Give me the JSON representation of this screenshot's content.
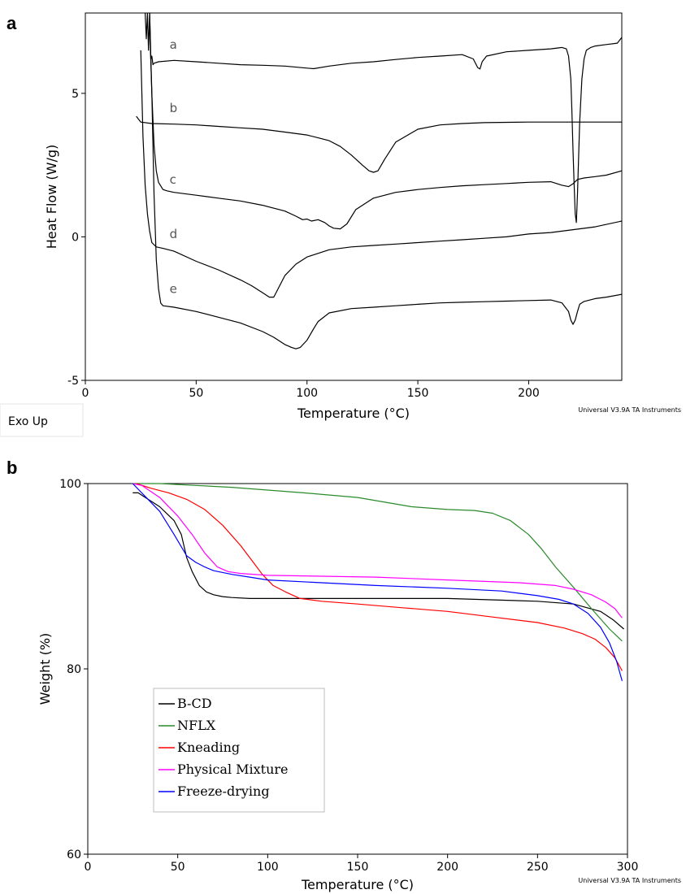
{
  "chart_data": [
    {
      "panel": "a",
      "type": "line",
      "xlabel": "Temperature (°C)",
      "ylabel": "Heat Flow (W/g)",
      "xlim": [
        0,
        242
      ],
      "ylim": [
        -5,
        7.8
      ],
      "xticks": [
        0,
        50,
        100,
        150,
        200
      ],
      "yticks": [
        -5,
        0,
        5
      ],
      "note": "Exo Up",
      "credit": "Universal V3.9A TA Instruments",
      "grid": false,
      "series": [
        {
          "name": "a",
          "color": "#000000",
          "x": [
            27,
            27.5,
            28,
            28.5,
            29,
            29.5,
            30,
            30.5,
            31,
            33,
            40,
            50,
            60,
            70,
            80,
            90,
            100,
            103,
            110,
            120,
            130,
            140,
            150,
            160,
            170,
            175,
            177,
            178,
            179,
            181,
            190,
            200,
            210,
            215,
            217,
            218,
            219,
            219.5,
            220,
            220.5,
            221,
            221.5,
            222,
            223,
            224,
            225,
            226,
            228,
            230,
            235,
            240,
            242
          ],
          "y": [
            7.8,
            6.9,
            7.8,
            6.5,
            7.8,
            6.2,
            6.3,
            6.0,
            6.05,
            6.1,
            6.15,
            6.1,
            6.05,
            6.0,
            5.98,
            5.95,
            5.88,
            5.86,
            5.95,
            6.05,
            6.1,
            6.18,
            6.25,
            6.3,
            6.35,
            6.2,
            5.9,
            5.85,
            6.1,
            6.3,
            6.45,
            6.5,
            6.55,
            6.6,
            6.55,
            6.3,
            5.5,
            4.4,
            3.0,
            1.8,
            0.8,
            0.5,
            1.5,
            4.0,
            5.5,
            6.2,
            6.5,
            6.6,
            6.65,
            6.7,
            6.75,
            6.95
          ]
        },
        {
          "name": "b",
          "color": "#000000",
          "x": [
            23,
            25,
            30,
            40,
            50,
            60,
            70,
            80,
            90,
            100,
            105,
            110,
            115,
            120,
            125,
            128,
            130,
            132,
            135,
            140,
            150,
            160,
            170,
            180,
            200,
            220,
            242
          ],
          "y": [
            4.2,
            4.0,
            3.95,
            3.93,
            3.9,
            3.85,
            3.8,
            3.75,
            3.65,
            3.55,
            3.45,
            3.35,
            3.15,
            2.85,
            2.5,
            2.3,
            2.25,
            2.3,
            2.7,
            3.3,
            3.75,
            3.9,
            3.95,
            3.98,
            4.0,
            4.0,
            4.0
          ]
        },
        {
          "name": "c",
          "color": "#000000",
          "x": [
            29,
            30,
            31,
            32,
            33,
            35,
            37,
            40,
            50,
            60,
            70,
            80,
            90,
            95,
            98,
            100,
            102,
            105,
            108,
            110,
            112,
            115,
            118,
            122,
            130,
            140,
            150,
            160,
            170,
            180,
            190,
            200,
            210,
            215,
            218,
            220,
            222,
            225,
            230,
            235,
            242
          ],
          "y": [
            7.5,
            5.0,
            3.2,
            2.3,
            1.9,
            1.65,
            1.6,
            1.55,
            1.45,
            1.35,
            1.25,
            1.1,
            0.9,
            0.72,
            0.6,
            0.62,
            0.55,
            0.6,
            0.5,
            0.38,
            0.3,
            0.28,
            0.45,
            0.95,
            1.35,
            1.55,
            1.65,
            1.72,
            1.78,
            1.82,
            1.86,
            1.9,
            1.92,
            1.8,
            1.75,
            1.85,
            2.0,
            2.05,
            2.1,
            2.15,
            2.3
          ]
        },
        {
          "name": "d",
          "color": "#000000",
          "x": [
            25,
            26,
            27,
            28,
            29,
            30,
            32,
            35,
            40,
            50,
            60,
            70,
            75,
            80,
            83,
            85,
            87,
            90,
            95,
            100,
            110,
            120,
            130,
            140,
            150,
            160,
            170,
            180,
            190,
            200,
            210,
            220,
            230,
            242
          ],
          "y": [
            6.5,
            3.5,
            1.8,
            0.8,
            0.2,
            -0.2,
            -0.35,
            -0.4,
            -0.5,
            -0.85,
            -1.15,
            -1.5,
            -1.7,
            -1.95,
            -2.1,
            -2.1,
            -1.8,
            -1.35,
            -0.95,
            -0.7,
            -0.45,
            -0.35,
            -0.3,
            -0.25,
            -0.2,
            -0.15,
            -0.1,
            -0.05,
            0.0,
            0.1,
            0.15,
            0.25,
            0.35,
            0.55
          ]
        },
        {
          "name": "e",
          "color": "#000000",
          "x": [
            29,
            30,
            31,
            32,
            33,
            34,
            35,
            40,
            50,
            60,
            70,
            80,
            85,
            90,
            93,
            95,
            97,
            100,
            103,
            105,
            110,
            120,
            130,
            140,
            150,
            160,
            170,
            180,
            190,
            200,
            210,
            215,
            218,
            219,
            220,
            221,
            222,
            223,
            225,
            230,
            235,
            242
          ],
          "y": [
            7.8,
            5.0,
            1.5,
            -0.8,
            -1.8,
            -2.3,
            -2.4,
            -2.45,
            -2.6,
            -2.8,
            -3.0,
            -3.3,
            -3.5,
            -3.75,
            -3.85,
            -3.9,
            -3.85,
            -3.6,
            -3.2,
            -2.95,
            -2.65,
            -2.5,
            -2.45,
            -2.4,
            -2.35,
            -2.3,
            -2.28,
            -2.26,
            -2.24,
            -2.22,
            -2.2,
            -2.3,
            -2.6,
            -2.9,
            -3.05,
            -2.9,
            -2.6,
            -2.35,
            -2.25,
            -2.15,
            -2.1,
            -2.0
          ]
        }
      ]
    },
    {
      "panel": "b",
      "type": "line",
      "xlabel": "Temperature (°C)",
      "ylabel": "Weight (%)",
      "xlim": [
        0,
        300
      ],
      "ylim": [
        60,
        100
      ],
      "xticks": [
        0,
        50,
        100,
        150,
        200,
        250,
        300
      ],
      "yticks": [
        60,
        80,
        100
      ],
      "credit": "Universal V3.9A TA Instruments",
      "grid": false,
      "legend": "inside-lower-left",
      "series": [
        {
          "name": "B-CD",
          "color": "#000000",
          "x": [
            25,
            28,
            32,
            40,
            48,
            52,
            55,
            58,
            62,
            66,
            70,
            75,
            80,
            90,
            100,
            150,
            200,
            250,
            270,
            285,
            292,
            298
          ],
          "y": [
            99,
            99,
            98.5,
            97.5,
            96,
            94.5,
            92,
            90.5,
            89,
            88.3,
            88,
            87.8,
            87.7,
            87.6,
            87.6,
            87.6,
            87.6,
            87.3,
            87,
            86.2,
            85.3,
            84.3
          ]
        },
        {
          "name": "NFLX",
          "color": "#2a8a2a",
          "x": [
            25,
            40,
            60,
            80,
            100,
            120,
            150,
            180,
            200,
            215,
            225,
            235,
            245,
            252,
            260,
            270,
            280,
            290,
            297
          ],
          "y": [
            100,
            100,
            99.8,
            99.6,
            99.3,
            99,
            98.5,
            97.5,
            97.2,
            97.1,
            96.8,
            96,
            94.5,
            93,
            91,
            88.8,
            86.5,
            84.3,
            83
          ]
        },
        {
          "name": "Kneading",
          "color": "#ff0000",
          "x": [
            27,
            35,
            45,
            55,
            65,
            75,
            85,
            92,
            97,
            103,
            110,
            118,
            130,
            150,
            175,
            200,
            225,
            250,
            265,
            275,
            282,
            288,
            293,
            297
          ],
          "y": [
            100,
            99.5,
            99,
            98.3,
            97.2,
            95.5,
            93.3,
            91.5,
            90.2,
            89,
            88.3,
            87.6,
            87.3,
            87,
            86.6,
            86.2,
            85.6,
            85,
            84.4,
            83.8,
            83.2,
            82.3,
            81.2,
            79.8
          ]
        },
        {
          "name": "Physical Mixture",
          "color": "#ff00ff",
          "x": [
            25,
            30,
            40,
            50,
            58,
            65,
            72,
            78,
            85,
            100,
            130,
            160,
            200,
            240,
            260,
            270,
            280,
            288,
            293,
            297
          ],
          "y": [
            100,
            99.8,
            98.5,
            96.5,
            94.5,
            92.5,
            91,
            90.5,
            90.3,
            90.1,
            90,
            89.9,
            89.6,
            89.3,
            89,
            88.6,
            88,
            87.2,
            86.5,
            85.5
          ]
        },
        {
          "name": "Freeze-drying",
          "color": "#0000ff",
          "x": [
            25,
            30,
            40,
            48,
            55,
            60,
            65,
            70,
            80,
            90,
            100,
            130,
            160,
            200,
            230,
            250,
            262,
            270,
            278,
            285,
            290,
            294,
            297
          ],
          "y": [
            100,
            99,
            97,
            94.5,
            92.2,
            91.5,
            91,
            90.6,
            90.2,
            89.9,
            89.6,
            89.3,
            89,
            88.7,
            88.4,
            87.9,
            87.5,
            87,
            86,
            84.5,
            82.8,
            80.8,
            78.7
          ]
        }
      ]
    }
  ]
}
